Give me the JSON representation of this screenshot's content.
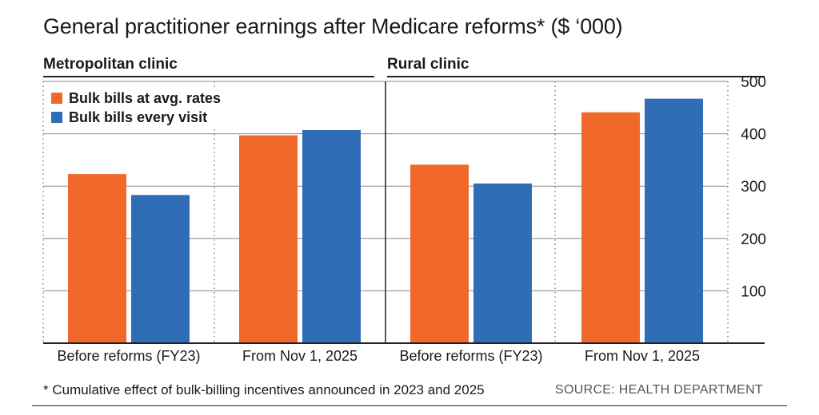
{
  "title": "General practitioner earnings after Medicare reforms* ($ ‘000)",
  "footnote": "* Cumulative effect of bulk-billing incentives announced in 2023 and 2025",
  "source": "SOURCE: HEALTH DEPARTMENT",
  "colors": {
    "bulk_avg": "#f0682a",
    "bulk_every": "#2f6db7",
    "grid": "#888888",
    "axis": "#222222"
  },
  "chart_data": [
    {
      "type": "bar",
      "title": "Metropolitan clinic",
      "categories": [
        "Before reforms (FY23)",
        "From Nov 1, 2025"
      ],
      "series": [
        {
          "name": "Bulk bills at avg. rates",
          "values": [
            323,
            397
          ]
        },
        {
          "name": "Bulk bills every visit",
          "values": [
            283,
            407
          ]
        }
      ],
      "ylim": [
        0,
        500
      ],
      "yticks": [
        100,
        200,
        300,
        400,
        500
      ],
      "legend": "top-left",
      "grid": true
    },
    {
      "type": "bar",
      "title": "Rural clinic",
      "categories": [
        "Before reforms (FY23)",
        "From Nov 1, 2025"
      ],
      "series": [
        {
          "name": "Bulk bills at avg. rates",
          "values": [
            341,
            441
          ]
        },
        {
          "name": "Bulk bills every visit",
          "values": [
            305,
            467
          ]
        }
      ],
      "ylim": [
        0,
        500
      ],
      "yticks": [
        100,
        200,
        300,
        400,
        500
      ],
      "legend": "none",
      "grid": true
    }
  ]
}
